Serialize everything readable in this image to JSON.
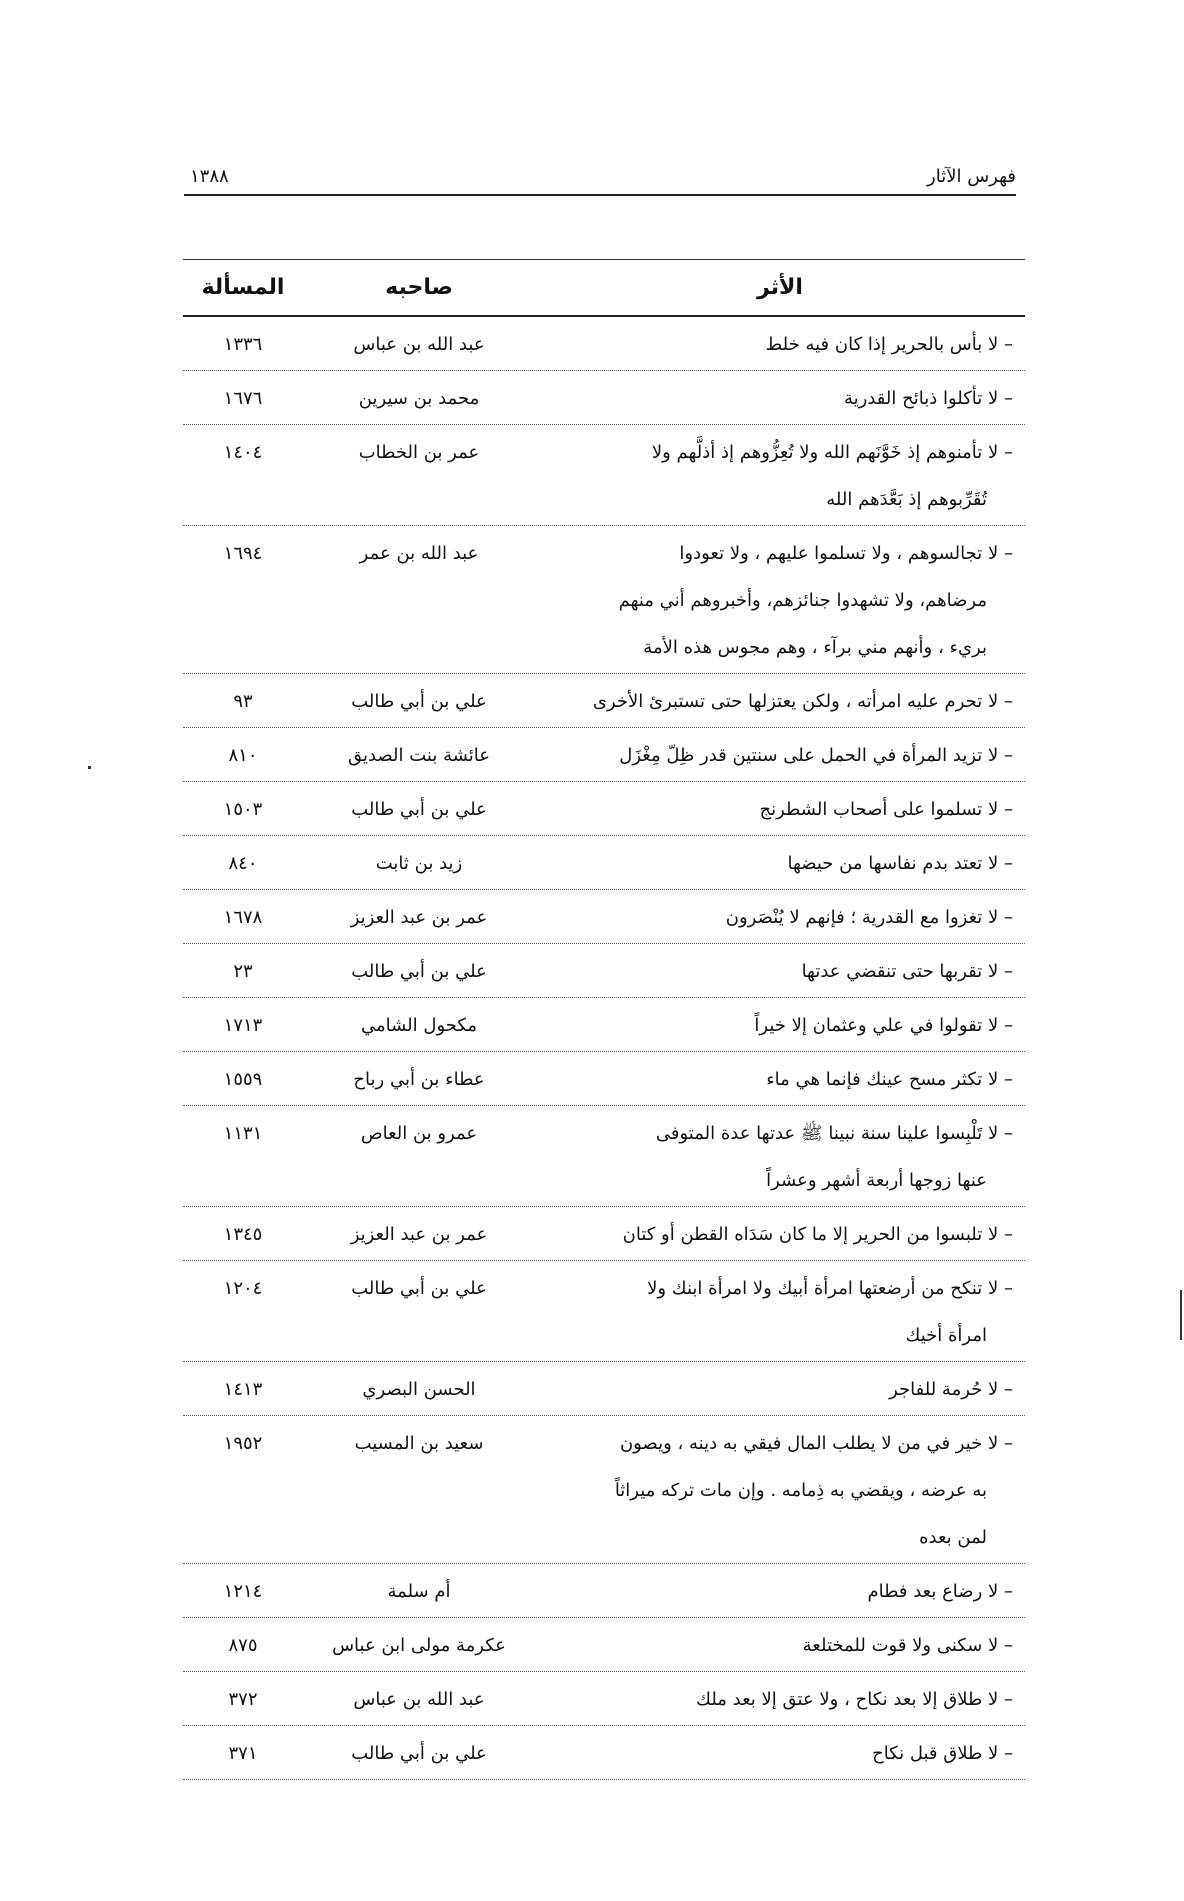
{
  "header": {
    "title": "فهرس الآثار",
    "page_number": "١٣٨٨"
  },
  "table": {
    "columns": [
      "الأثر",
      "صاحبه",
      "المسألة"
    ],
    "rows": [
      {
        "athar": [
          "لا بأس بالحرير إذا كان فيه خلط"
        ],
        "companion": "عبد الله بن عباس",
        "issue": "١٣٣٦"
      },
      {
        "athar": [
          "لا تأكلوا ذبائح القدرية"
        ],
        "companion": "محمد بن سيرين",
        "issue": "١٦٧٦"
      },
      {
        "athar": [
          "لا تأمنوهم إذ خَوَّنَهم الله ولا تُعِزُّوهم إذ أذلَّهم ولا",
          "تُقَرِّبوهم إذ بَعَّدَهم الله"
        ],
        "companion": "عمر بن الخطاب",
        "issue": "١٤٠٤"
      },
      {
        "athar": [
          "لا تجالسوهم ، ولا تسلموا عليهم ، ولا تعودوا",
          "مرضاهم، ولا تشهدوا جنائزهم، وأخبروهم أني منهم",
          "بريء ، وأنهم مني برآء ، وهم مجوس هذه الأمة"
        ],
        "companion": "عبد الله بن عمر",
        "issue": "١٦٩٤"
      },
      {
        "athar": [
          "لا تحرم عليه امرأته ، ولكن يعتزلها حتى تستبرئ الأخرى"
        ],
        "companion": "علي بن أبي طالب",
        "issue": "٩٣"
      },
      {
        "athar": [
          "لا تزيد المرأة في الحمل على سنتين قدر ظِلّ مِغْزَل"
        ],
        "companion": "عائشة بنت الصديق",
        "issue": "٨١٠"
      },
      {
        "athar": [
          "لا تسلموا على أصحاب الشطرنج"
        ],
        "companion": "علي بن أبي طالب",
        "issue": "١٥٠٣"
      },
      {
        "athar": [
          "لا تعتد بدم نفاسها من حيضها"
        ],
        "companion": "زيد بن ثابت",
        "issue": "٨٤٠"
      },
      {
        "athar": [
          "لا تغزوا مع القدرية ؛ فإنهم لا يُنْصَرون"
        ],
        "companion": "عمر بن عبد العزيز",
        "issue": "١٦٧٨"
      },
      {
        "athar": [
          "لا تقربها حتى تنقضي عدتها"
        ],
        "companion": "علي بن أبي طالب",
        "issue": "٢٣"
      },
      {
        "athar": [
          "لا تقولوا في علي وعثمان إلا خيراً"
        ],
        "companion": "مكحول الشامي",
        "issue": "١٧١٣"
      },
      {
        "athar": [
          "لا تكثر مسح عينك فإنما هي ماء"
        ],
        "companion": "عطاء بن أبي رباح",
        "issue": "١٥٥٩"
      },
      {
        "athar": [
          "لا تَلْبِسوا علينا سنة نبينا ﷺ عدتها عدة المتوفى",
          "عنها زوجها أربعة أشهر وعشراً"
        ],
        "companion": "عمرو بن العاص",
        "issue": "١١٣١"
      },
      {
        "athar": [
          "لا تلبسوا من الحرير إلا ما كان سَدَاه القطن أو كتان"
        ],
        "companion": "عمر بن عبد العزيز",
        "issue": "١٣٤٥"
      },
      {
        "athar": [
          "لا تنكح من أرضعتها امرأة أبيك ولا امرأة ابنك ولا",
          "امرأة أخيك"
        ],
        "companion": "علي بن أبي طالب",
        "issue": "١٢٠٤"
      },
      {
        "athar": [
          "لا حُرمة للفاجر"
        ],
        "companion": "الحسن البصري",
        "issue": "١٤١٣"
      },
      {
        "athar": [
          "لا خير في من لا يطلب المال فيقي به دينه ، ويصون",
          "به عرضه ، ويقضي به ذِمامه . وإن مات تركه ميراثاً",
          "لمن بعده"
        ],
        "companion": "سعيد بن المسيب",
        "issue": "١٩٥٢"
      },
      {
        "athar": [
          "لا رضاع بعد فطام"
        ],
        "companion": "أم سلمة",
        "issue": "١٢١٤"
      },
      {
        "athar": [
          "لا سكنى ولا قوت للمختلعة"
        ],
        "companion": "عكرمة مولى ابن عباس",
        "issue": "٨٧٥"
      },
      {
        "athar": [
          "لا طلاق إلا بعد نكاح ، ولا عتق إلا بعد ملك"
        ],
        "companion": "عبد الله بن عباس",
        "issue": "٣٧٢"
      },
      {
        "athar": [
          "لا طلاق قبل نكاح"
        ],
        "companion": "علي بن أبي طالب",
        "issue": "٣٧١"
      }
    ]
  }
}
